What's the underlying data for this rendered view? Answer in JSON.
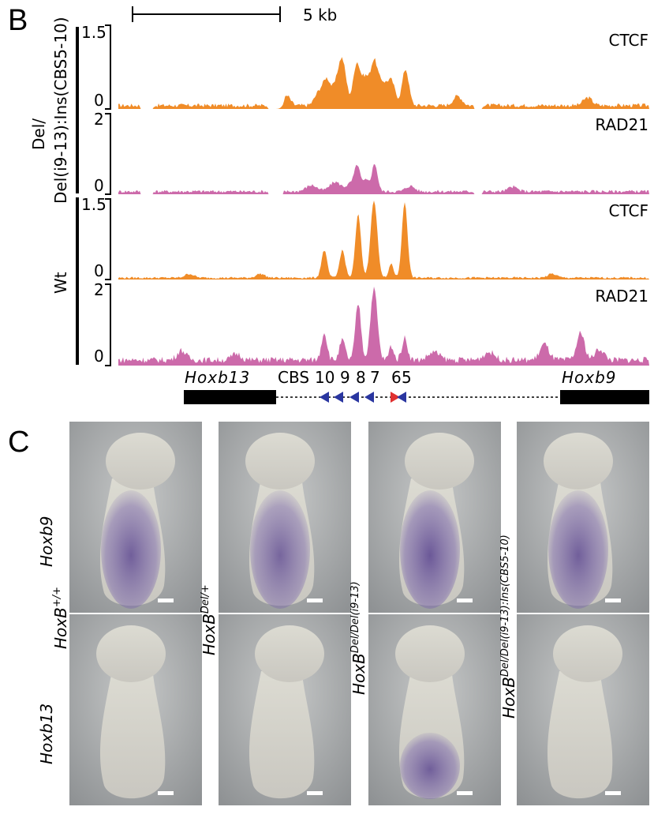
{
  "panel_b": {
    "letter": "B",
    "scale_bar_label": "5 kb",
    "condition_labels": [
      "Del/",
      "Del(i9-13):Ins(CBS5-10)",
      "Wt"
    ],
    "tracks": [
      {
        "name": "CTCF",
        "y_max": "1.5",
        "y_min": "0",
        "color": "#f08c28"
      },
      {
        "name": "RAD21",
        "y_max": "2",
        "y_min": "0",
        "color": "#cc6aaa"
      },
      {
        "name": "CTCF",
        "y_max": "1.5",
        "y_min": "0",
        "color": "#f08c28"
      },
      {
        "name": "RAD21",
        "y_max": "2",
        "y_min": "0",
        "color": "#cc6aaa"
      }
    ],
    "genes": [
      "Hoxb13",
      "Hoxb9"
    ],
    "cbs_prefix": "CBS",
    "cbs_numbers": [
      "10",
      "9",
      "8",
      "7",
      "6",
      "5"
    ],
    "arrow_colors": {
      "blue": "#2a36a0",
      "red": "#e03030"
    }
  },
  "panel_c": {
    "letter": "C",
    "row_genes": [
      "Hoxb9",
      "Hoxb13"
    ],
    "genotypes": [
      {
        "base": "HoxB",
        "sup": "+/+"
      },
      {
        "base": "HoxB",
        "sup": "Del/+"
      },
      {
        "base": "HoxB",
        "sup": "Del/Del(i9-13)"
      },
      {
        "base": "HoxB",
        "sup": "Del/Del(i9-13):Ins(CBS5-10)"
      }
    ],
    "stain_levels": {
      "hoxb9": [
        0.85,
        0.8,
        0.9,
        0.85
      ],
      "hoxb13": [
        0.05,
        0.05,
        0.85,
        0.05
      ]
    }
  }
}
